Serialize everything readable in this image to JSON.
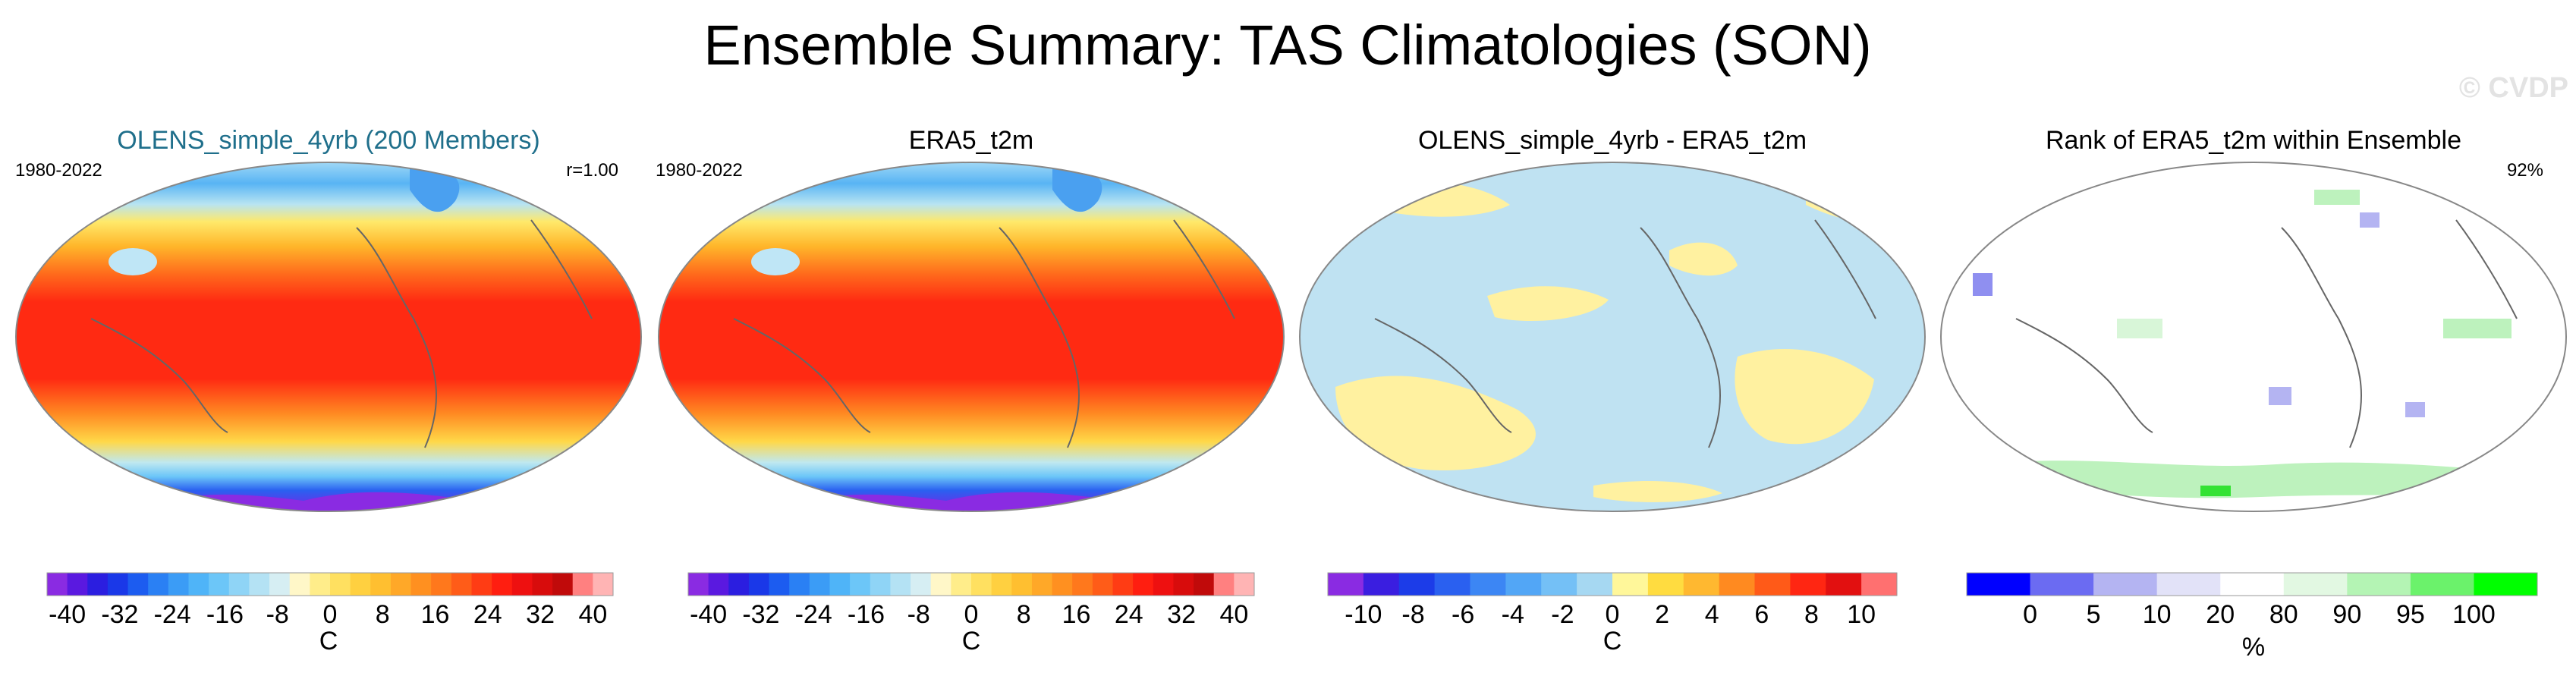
{
  "title": "Ensemble Summary: TAS Climatologies (SON)",
  "watermark": "© CVDP",
  "chart_data": [
    {
      "type": "heatmap",
      "title": "OLENS_simple_4yrb (200 Members)",
      "title_color": "#1f6f8b",
      "left_label": "1980-2022",
      "right_label": "r=1.00",
      "field": "tas",
      "units": "C",
      "colorbar": {
        "ticks": [
          "-40",
          "-32",
          "-24",
          "-16",
          "-8",
          "0",
          "8",
          "16",
          "24",
          "32",
          "40"
        ],
        "label": "C",
        "colors": [
          "#8a2be2",
          "#5a19e0",
          "#2b1ee0",
          "#1a38e8",
          "#1c5cf0",
          "#2a80f4",
          "#3b9cf6",
          "#4fb4f8",
          "#6cc6f8",
          "#8fd4f6",
          "#b4e2f4",
          "#d6eef3",
          "#fff7c8",
          "#ffed8a",
          "#ffe060",
          "#ffd040",
          "#ffbf30",
          "#ffa828",
          "#ff9020",
          "#ff781c",
          "#ff5c18",
          "#ff3c14",
          "#ff1e10",
          "#ee1010",
          "#d80c0c",
          "#c00a0a",
          "#ff8080",
          "#ffb4b4"
        ]
      }
    },
    {
      "type": "heatmap",
      "title": "ERA5_t2m",
      "title_color": "#000000",
      "left_label": "1980-2022",
      "right_label": "",
      "field": "tas",
      "units": "C",
      "colorbar": {
        "ticks": [
          "-40",
          "-32",
          "-24",
          "-16",
          "-8",
          "0",
          "8",
          "16",
          "24",
          "32",
          "40"
        ],
        "label": "C",
        "colors": [
          "#8a2be2",
          "#5a19e0",
          "#2b1ee0",
          "#1a38e8",
          "#1c5cf0",
          "#2a80f4",
          "#3b9cf6",
          "#4fb4f8",
          "#6cc6f8",
          "#8fd4f6",
          "#b4e2f4",
          "#d6eef3",
          "#fff7c8",
          "#ffed8a",
          "#ffe060",
          "#ffd040",
          "#ffbf30",
          "#ffa828",
          "#ff9020",
          "#ff781c",
          "#ff5c18",
          "#ff3c14",
          "#ff1e10",
          "#ee1010",
          "#d80c0c",
          "#c00a0a",
          "#ff8080",
          "#ffb4b4"
        ]
      }
    },
    {
      "type": "heatmap",
      "title": "OLENS_simple_4yrb - ERA5_t2m",
      "title_color": "#000000",
      "left_label": "",
      "right_label": "",
      "field": "tas difference",
      "units": "C",
      "colorbar": {
        "ticks": [
          "-10",
          "-8",
          "-6",
          "-4",
          "-2",
          "0",
          "2",
          "4",
          "6",
          "8",
          "10"
        ],
        "label": "C",
        "colors": [
          "#8a2be2",
          "#3a1ee0",
          "#1c3ce8",
          "#2a60f0",
          "#3c86f4",
          "#52a6f6",
          "#74c0f6",
          "#a6d8f2",
          "#fff79a",
          "#ffdc40",
          "#ffb830",
          "#ff8a20",
          "#ff5a18",
          "#ff2612",
          "#e21010",
          "#ff7070"
        ]
      }
    },
    {
      "type": "heatmap",
      "title": "Rank of ERA5_t2m within Ensemble",
      "title_color": "#000000",
      "left_label": "",
      "right_label": "92%",
      "field": "rank",
      "units": "%",
      "colorbar": {
        "ticks": [
          "0",
          "5",
          "10",
          "20",
          "80",
          "90",
          "95",
          "100"
        ],
        "label": "%",
        "colors": [
          "#0000ff",
          "#6b6bf2",
          "#b4b4f2",
          "#e2e2f8",
          "#ffffff",
          "#e2f8e2",
          "#b4f4b4",
          "#6bf26b",
          "#00ff00"
        ]
      }
    }
  ]
}
